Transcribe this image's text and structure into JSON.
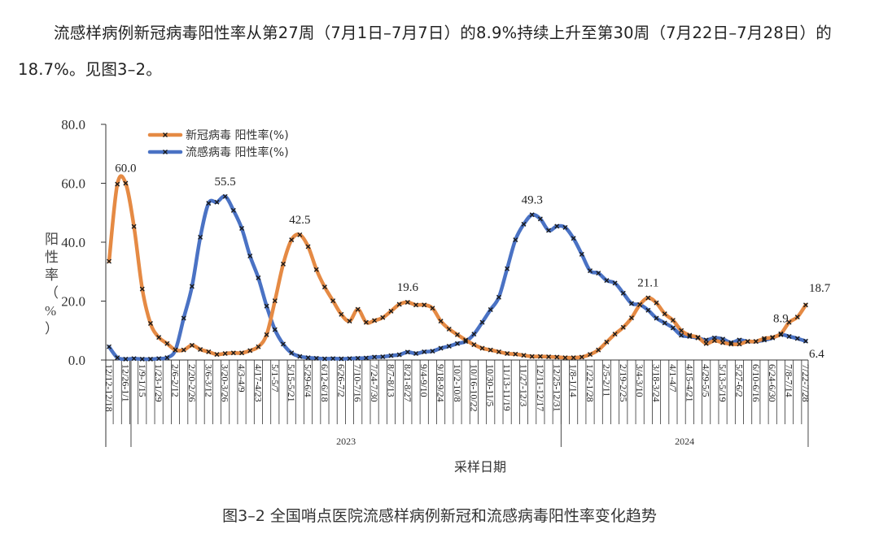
{
  "document": {
    "paragraph": "流感样病例新冠病毒阳性率从第27周（7月1日–7月7日）的8.9%持续上升至第30周（7月22日–7月28日）的18.7%。见图3–2。",
    "caption": "图3–2 全国哨点医院流感样病例新冠和流感病毒阳性率变化趋势"
  },
  "chart_data": {
    "type": "line",
    "ylabel": "阳性率（%）",
    "xlabel": "采样日期",
    "ylim": [
      0,
      80
    ],
    "yticks": [
      "0.0",
      "20.0",
      "40.0",
      "60.0",
      "80.0"
    ],
    "grid": false,
    "legend_position": "top-left",
    "x_tick_labels": [
      "12/12-12/18",
      "12/26-1/1",
      "1/9-1/15",
      "1/23-1/29",
      "2/6-2/12",
      "2/20-2/26",
      "3/6-3/12",
      "3/20-3/26",
      "4/3-4/9",
      "4/17-4/23",
      "5/1-5/7",
      "5/15-5/21",
      "5/29-6/4",
      "6/12-6/18",
      "6/26-7/2",
      "7/10-7/16",
      "7/24-7/30",
      "8/7-8/13",
      "8/21-8/27",
      "9/4-9/10",
      "9/18-9/24",
      "10/2-10/8",
      "10/16-10/22",
      "10/30-11/5",
      "11/13-11/19",
      "11/27-12/3",
      "12/11-12/17",
      "12/25-12/31",
      "1/8-1/14",
      "1/22-1/28",
      "2/5-2/11",
      "2/19-2/25",
      "3/4-3/10",
      "3/18-3/24",
      "4/1-4/7",
      "4/15-4/21",
      "4/29-5/5",
      "5/13-5/19",
      "5/27-6/2",
      "6/10-6/16",
      "6/24-6/30",
      "7/8-7/14",
      "7/22-7/28"
    ],
    "x_groups": [
      {
        "label": "2023"
      },
      {
        "label": "2024"
      }
    ],
    "series": [
      {
        "name": "新冠病毒 阳性率(%)",
        "color": "#E58A44",
        "values": [
          33.5,
          59.7,
          60.0,
          45.3,
          24.1,
          12.4,
          7.7,
          5.6,
          3.4,
          3.4,
          5.0,
          3.6,
          2.8,
          1.9,
          2.2,
          2.4,
          2.4,
          3.2,
          4.5,
          8.6,
          20.1,
          32.6,
          40.8,
          42.5,
          38.5,
          30.7,
          24.8,
          20.1,
          15.5,
          13.2,
          17.2,
          12.8,
          13.4,
          14.4,
          16.6,
          18.9,
          19.6,
          18.7,
          18.7,
          17.6,
          13.2,
          10.5,
          8.6,
          6.8,
          5.2,
          4.0,
          3.4,
          2.8,
          2.2,
          2.0,
          1.6,
          1.2,
          1.2,
          1.1,
          1.0,
          0.8,
          0.8,
          1.0,
          1.9,
          3.4,
          6.1,
          8.8,
          11.1,
          14.3,
          18.8,
          21.1,
          19.4,
          15.7,
          13.5,
          10.0,
          8.4,
          7.7,
          5.6,
          6.6,
          5.9,
          5.4,
          5.4,
          6.3,
          6.3,
          7.3,
          7.7,
          8.9,
          12.8,
          14.6,
          18.7
        ],
        "labels": [
          {
            "index": 2,
            "text": "60.0"
          },
          {
            "index": 23,
            "text": "42.5"
          },
          {
            "index": 36,
            "text": "19.6"
          },
          {
            "index": 65,
            "text": "21.1"
          },
          {
            "index": 81,
            "text": "8.9"
          },
          {
            "index": 84,
            "text": "18.7"
          }
        ]
      },
      {
        "name": "流感病毒 阳性率(%)",
        "color": "#4A72C4",
        "values": [
          4.5,
          0.8,
          0.3,
          0.5,
          0.3,
          0.3,
          0.5,
          0.8,
          3.4,
          14.2,
          25.0,
          41.7,
          53.2,
          53.6,
          55.5,
          50.8,
          44.7,
          35.3,
          27.9,
          18.3,
          10.3,
          5.4,
          2.4,
          1.2,
          0.8,
          0.6,
          0.4,
          0.5,
          0.4,
          0.5,
          0.6,
          0.7,
          1.0,
          1.1,
          1.5,
          1.8,
          2.7,
          2.2,
          2.8,
          3.0,
          4.0,
          4.7,
          5.6,
          6.3,
          8.8,
          12.8,
          17.1,
          21.3,
          31.0,
          40.8,
          46.1,
          49.3,
          47.9,
          44.0,
          45.4,
          45.0,
          41.3,
          35.9,
          30.3,
          29.5,
          27.0,
          26.1,
          22.7,
          19.2,
          18.8,
          16.9,
          14.2,
          12.6,
          10.9,
          8.4,
          8.0,
          7.5,
          6.8,
          7.5,
          7.1,
          5.9,
          6.8,
          6.3,
          6.3,
          6.8,
          7.5,
          8.6,
          8.0,
          7.3,
          6.4
        ],
        "labels": [
          {
            "index": 14,
            "text": "55.5"
          },
          {
            "index": 51,
            "text": "49.3"
          },
          {
            "index": 84,
            "text": "6.4"
          }
        ]
      }
    ]
  }
}
